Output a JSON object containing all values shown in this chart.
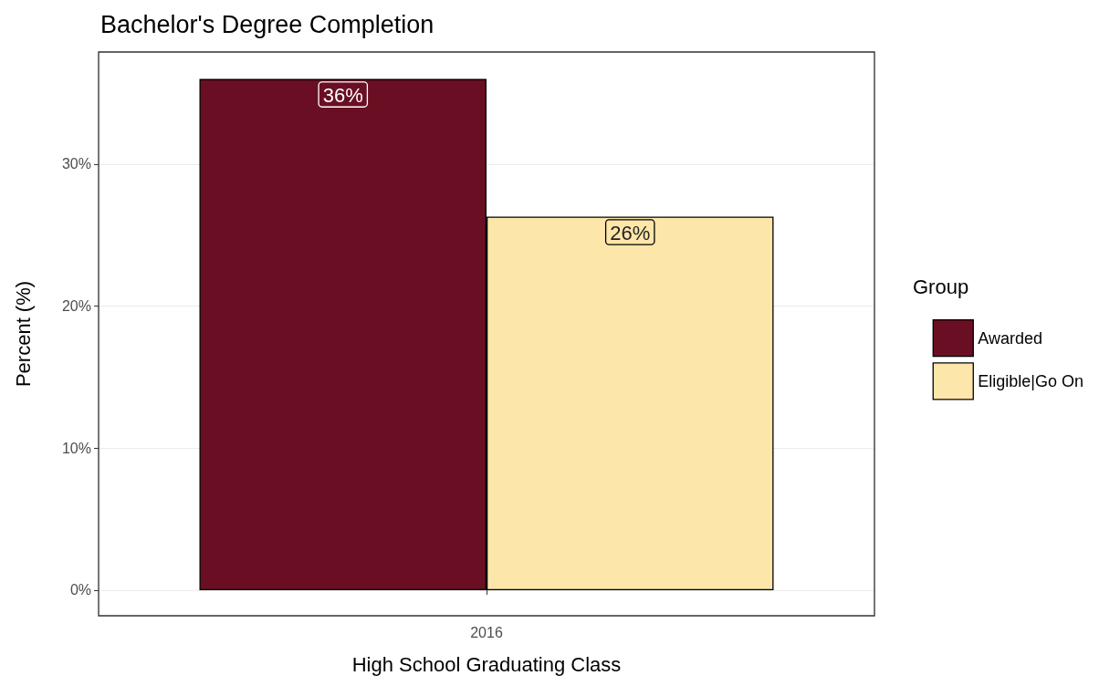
{
  "chart_data": {
    "type": "bar",
    "title": "Bachelor's Degree Completion",
    "xlabel": "High School Graduating Class",
    "ylabel": "Percent (%)",
    "legend_title": "Group",
    "categories": [
      "2016"
    ],
    "series": [
      {
        "name": "Awarded",
        "color": "#6a0f23",
        "values": [
          36
        ],
        "value_labels": [
          "36%"
        ]
      },
      {
        "name": "Eligible|Go On",
        "color": "#fde6a9",
        "values": [
          26.3
        ],
        "value_labels": [
          "26%"
        ]
      }
    ],
    "ylim": [
      -1.8,
      37.9
    ],
    "yticks": [
      {
        "value": 0,
        "label": "0%"
      },
      {
        "value": 10,
        "label": "10%"
      },
      {
        "value": 20,
        "label": "20%"
      },
      {
        "value": 30,
        "label": "30%"
      }
    ],
    "grid": true,
    "legend": "right"
  }
}
